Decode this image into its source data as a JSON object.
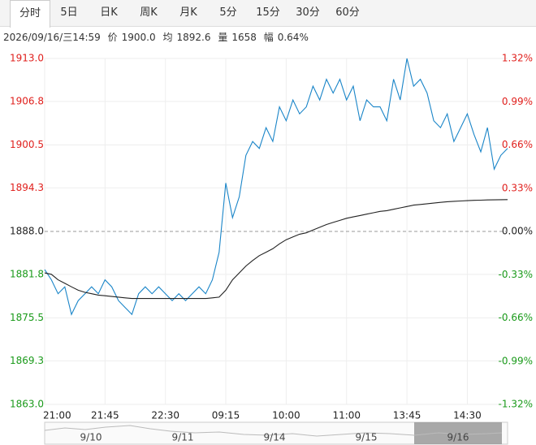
{
  "tabs": {
    "items": [
      "分时",
      "5日",
      "日K",
      "周K",
      "月K",
      "5分",
      "15分",
      "30分",
      "60分"
    ],
    "selected": 0
  },
  "info": {
    "timestamp": "2026/09/16/三14:59",
    "price_label": "价",
    "price": "1900.0",
    "avg_label": "均",
    "avg": "1892.6",
    "volume_label": "量",
    "volume": "1658",
    "range_label": "幅",
    "range": "0.64%"
  },
  "chart_data": {
    "type": "line",
    "categories": [
      "21:00",
      null,
      null,
      null,
      null,
      null,
      null,
      null,
      null,
      "21:45",
      null,
      null,
      null,
      null,
      null,
      null,
      null,
      null,
      "22:30",
      null,
      null,
      null,
      null,
      null,
      null,
      null,
      null,
      "09:15",
      null,
      null,
      null,
      null,
      null,
      null,
      null,
      null,
      "10:00",
      null,
      null,
      null,
      null,
      null,
      null,
      null,
      null,
      "11:00",
      null,
      null,
      null,
      null,
      null,
      null,
      null,
      null,
      "13:45",
      null,
      null,
      null,
      null,
      null,
      null,
      null,
      null,
      "14:30",
      null,
      null,
      null,
      null,
      null,
      null
    ],
    "series": [
      {
        "name": "价",
        "color": "#1a85c8",
        "values": [
          1882.5,
          1881,
          1879,
          1880,
          1876,
          1878,
          1879,
          1880,
          1879,
          1881,
          1880,
          1878,
          1877,
          1876,
          1879,
          1880,
          1879,
          1880,
          1879,
          1878,
          1879,
          1878,
          1879,
          1880,
          1879,
          1881,
          1885,
          1895,
          1890,
          1893,
          1899,
          1901,
          1900,
          1903,
          1901,
          1906,
          1904,
          1907,
          1905,
          1906,
          1909,
          1907,
          1910,
          1908,
          1910,
          1907,
          1909,
          1904,
          1907,
          1906,
          1906,
          1904,
          1910,
          1907,
          1913,
          1909,
          1910,
          1908,
          1904,
          1903,
          1905,
          1901,
          1903,
          1905,
          1902,
          1899.5,
          1903,
          1897,
          1899,
          1900
        ]
      },
      {
        "name": "均",
        "color": "#222222",
        "values": [
          1882,
          1881.8,
          1881,
          1880.5,
          1880,
          1879.5,
          1879.2,
          1879,
          1878.8,
          1878.7,
          1878.6,
          1878.5,
          1878.4,
          1878.3,
          1878.3,
          1878.3,
          1878.3,
          1878.3,
          1878.3,
          1878.3,
          1878.3,
          1878.3,
          1878.3,
          1878.3,
          1878.3,
          1878.4,
          1878.5,
          1879.5,
          1881,
          1882,
          1883,
          1883.8,
          1884.5,
          1885,
          1885.5,
          1886.2,
          1886.8,
          1887.2,
          1887.6,
          1887.8,
          1888.2,
          1888.6,
          1889,
          1889.3,
          1889.6,
          1889.9,
          1890.1,
          1890.3,
          1890.5,
          1890.7,
          1890.9,
          1891,
          1891.2,
          1891.4,
          1891.6,
          1891.8,
          1891.9,
          1892,
          1892.1,
          1892.2,
          1892.3,
          1892.35,
          1892.4,
          1892.45,
          1892.5,
          1892.52,
          1892.55,
          1892.57,
          1892.59,
          1892.6
        ]
      }
    ],
    "ylim": [
      1863,
      1913
    ],
    "yticks": [
      {
        "value": 1913,
        "label": "1913.0"
      },
      1906.8,
      1900.5,
      1894.3,
      {
        "value": 1888,
        "label": "1888.0"
      },
      1881.8,
      1875.5,
      1869.3,
      {
        "value": 1863,
        "label": "1863.0"
      }
    ],
    "y2lim": [
      -1.32,
      1.32
    ],
    "y2ticks": [
      {
        "value": 1.32,
        "label": "1.32%"
      },
      {
        "value": 0.99,
        "label": "0.99%"
      },
      {
        "value": 0.66,
        "label": "0.66%"
      },
      {
        "value": 0.33,
        "label": "0.33%"
      },
      {
        "value": 0,
        "label": "0.00%"
      },
      {
        "value": -0.33,
        "label": "-0.33%"
      },
      {
        "value": -0.66,
        "label": "-0.66%"
      },
      {
        "value": -0.99,
        "label": "-0.99%"
      },
      {
        "value": -1.32,
        "label": "-1.32%"
      }
    ],
    "reference_line": 1888,
    "grid": true,
    "up_color": "#e0201d",
    "down_color": "#1a9a1a"
  },
  "navigator": {
    "dates": [
      "9/10",
      "9/11",
      "9/14",
      "9/15",
      "9/16"
    ]
  }
}
